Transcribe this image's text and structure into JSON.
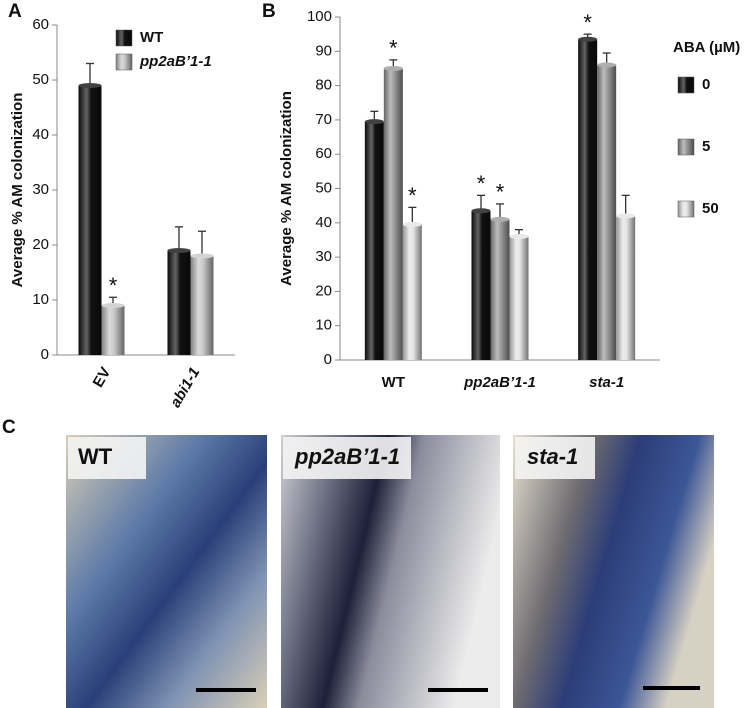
{
  "chart_data": [
    {
      "type": "bar",
      "panel_label": "A",
      "ylabel": "Average % AM colonization",
      "categories": [
        "EV",
        "abi1-1"
      ],
      "category_italic": [
        false,
        true
      ],
      "ylim": [
        0,
        60
      ],
      "yticks": [
        0,
        10,
        20,
        30,
        40,
        50,
        60
      ],
      "series": [
        {
          "name": "WT",
          "color": "#111111",
          "italic": false,
          "values": [
            49,
            19
          ],
          "errors": [
            4,
            4.3
          ],
          "significance": [
            null,
            null
          ]
        },
        {
          "name": "pp2aB’1-1",
          "color": "#c8c8c8",
          "italic": true,
          "values": [
            9,
            18
          ],
          "errors": [
            1.5,
            4.5
          ],
          "significance": [
            "*",
            null
          ]
        }
      ]
    },
    {
      "type": "bar",
      "panel_label": "B",
      "ylabel": "Average %  AM colonization",
      "legend_title": "ABA (µM)",
      "categories": [
        "WT",
        "pp2aB’1-1",
        "sta-1"
      ],
      "category_italic": [
        false,
        true,
        true
      ],
      "ylim": [
        0,
        100
      ],
      "yticks": [
        0,
        10,
        20,
        30,
        40,
        50,
        60,
        70,
        80,
        90,
        100
      ],
      "series": [
        {
          "name": "0",
          "color": "#111111",
          "italic": false,
          "values": [
            69.5,
            43.5,
            93.5
          ],
          "errors": [
            3,
            4.5,
            1.5
          ],
          "significance": [
            null,
            "*",
            "*"
          ]
        },
        {
          "name": "5",
          "color": "#9a9a9a",
          "italic": false,
          "values": [
            85,
            41,
            86
          ],
          "errors": [
            2.5,
            4.5,
            3.5
          ],
          "significance": [
            "*",
            "*",
            null
          ]
        },
        {
          "name": "50",
          "color": "#e4e4e4",
          "italic": false,
          "values": [
            39.5,
            36,
            42
          ],
          "errors": [
            5,
            2,
            6
          ],
          "significance": [
            "*",
            null,
            null
          ]
        }
      ]
    }
  ],
  "micrographs": {
    "panel_label": "C",
    "panels": [
      {
        "label": "WT"
      },
      {
        "label": "pp2aB’1-1"
      },
      {
        "label": "sta-1"
      }
    ]
  }
}
